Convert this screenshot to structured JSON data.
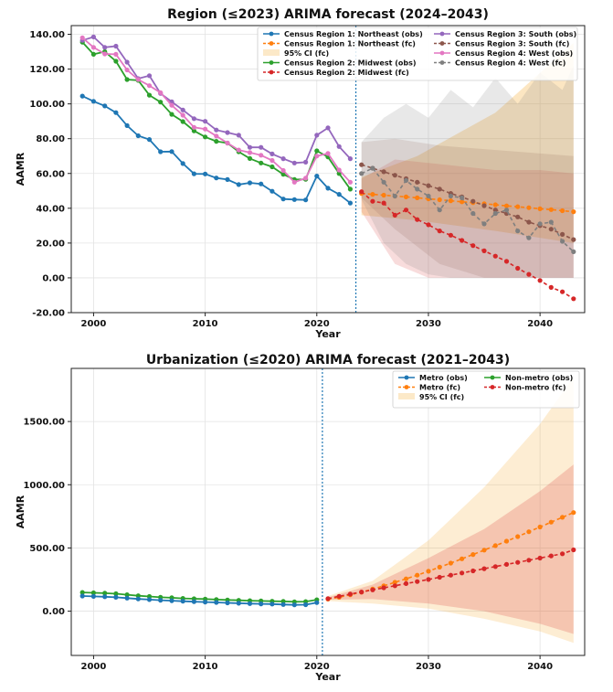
{
  "chart_data": [
    {
      "type": "line",
      "title": "Region (≤2023) ARIMA forecast (2024–2043)",
      "xlabel": "Year",
      "ylabel": "AAMR",
      "xlim": [
        1998,
        2044
      ],
      "ylim": [
        -20,
        145
      ],
      "xticks": [
        2000,
        2010,
        2020,
        2030,
        2040
      ],
      "yticks": [
        -20,
        0,
        20,
        40,
        60,
        80,
        100,
        120,
        140
      ],
      "grid": true,
      "legend_position": "top-right",
      "cutoff_year": 2023.5,
      "legend": {
        "col1": [
          "Census Region 1: Northeast (obs)",
          "Census Region 1: Northeast (fc)",
          "95% CI (fc)",
          "Census Region 2: Midwest (obs)",
          "Census Region 2: Midwest (fc)"
        ],
        "col2": [
          "Census Region 3: South (obs)",
          "Census Region 3: South (fc)",
          "Census Region 4: West (obs)",
          "Census Region 4: West (fc)"
        ]
      },
      "ci": [
        {
          "color": "#f5a623",
          "opacity": 0.28,
          "years": [
            2024,
            2029,
            2036,
            2043
          ],
          "lower": [
            36,
            33,
            27,
            20
          ],
          "upper": [
            58,
            70,
            95,
            135
          ]
        },
        {
          "color": "#d62728",
          "opacity": 0.16,
          "years": [
            2024,
            2027,
            2030,
            2033,
            2036,
            2040,
            2043
          ],
          "lower": [
            38,
            8,
            0,
            0,
            0,
            0,
            0
          ],
          "upper": [
            57,
            68,
            66,
            64,
            62,
            62,
            60
          ]
        },
        {
          "color": "#8c564b",
          "opacity": 0.16,
          "years": [
            2024,
            2027,
            2031,
            2035,
            2039,
            2043
          ],
          "lower": [
            46,
            28,
            8,
            0,
            0,
            0
          ],
          "upper": [
            78,
            80,
            76,
            74,
            72,
            70
          ]
        },
        {
          "color": "#7f7f7f",
          "opacity": 0.18,
          "years": [
            2024,
            2026,
            2028,
            2030,
            2032,
            2034,
            2036,
            2038,
            2040,
            2042,
            2043
          ],
          "lower": [
            45,
            20,
            8,
            2,
            0,
            0,
            0,
            0,
            0,
            0,
            0
          ],
          "upper": [
            78,
            92,
            100,
            92,
            108,
            98,
            115,
            100,
            118,
            108,
            122
          ]
        }
      ],
      "series": [
        {
          "name": "Census Region 1: Northeast (obs)",
          "color": "#1f77b4",
          "x": [
            1999,
            2000,
            2001,
            2002,
            2003,
            2004,
            2005,
            2006,
            2007,
            2008,
            2009,
            2010,
            2011,
            2012,
            2013,
            2014,
            2015,
            2016,
            2017,
            2018,
            2019,
            2020,
            2021,
            2022,
            2023
          ],
          "y": [
            104.5,
            101.5,
            98.8,
            95,
            87.5,
            81.7,
            79.5,
            72.5,
            72.6,
            65.7,
            59.8,
            59.7,
            57.4,
            56.5,
            53.6,
            54.6,
            54,
            49.8,
            45.3,
            45,
            44.8,
            58.5,
            51.5,
            48,
            43
          ]
        },
        {
          "name": "Census Region 2: Midwest (obs)",
          "color": "#2ca02c",
          "x": [
            1999,
            2000,
            2001,
            2002,
            2003,
            2004,
            2005,
            2006,
            2007,
            2008,
            2009,
            2010,
            2011,
            2012,
            2013,
            2014,
            2015,
            2016,
            2017,
            2018,
            2019,
            2020,
            2021,
            2022,
            2023
          ],
          "y": [
            135.5,
            128.5,
            130,
            124.5,
            114,
            113.5,
            105,
            101,
            94,
            89.8,
            84.5,
            81,
            78.5,
            77.5,
            72.5,
            68.6,
            66,
            63.8,
            59.5,
            56.5,
            56.6,
            73,
            69.5,
            60,
            51
          ]
        },
        {
          "name": "Census Region 3: South (obs)",
          "color": "#9467bd",
          "x": [
            1999,
            2000,
            2001,
            2002,
            2003,
            2004,
            2005,
            2006,
            2007,
            2008,
            2009,
            2010,
            2011,
            2012,
            2013,
            2014,
            2015,
            2016,
            2017,
            2018,
            2019,
            2020,
            2021,
            2022,
            2023
          ],
          "y": [
            136.5,
            138.5,
            132.5,
            133.2,
            124,
            114.5,
            116.2,
            106,
            101.2,
            96.5,
            91.5,
            90,
            85,
            83.5,
            82,
            75,
            75,
            71.2,
            68.5,
            66,
            66.5,
            82,
            86.2,
            75.5,
            68.5
          ]
        },
        {
          "name": "Census Region 4: West (obs)",
          "color": "#e377c2",
          "x": [
            1999,
            2000,
            2001,
            2002,
            2003,
            2004,
            2005,
            2006,
            2007,
            2008,
            2009,
            2010,
            2011,
            2012,
            2013,
            2014,
            2015,
            2016,
            2017,
            2018,
            2019,
            2020,
            2021,
            2022,
            2023
          ],
          "y": [
            138,
            132.5,
            128.7,
            128.5,
            119.5,
            114,
            110.5,
            106.5,
            99.2,
            93.5,
            86.5,
            85.5,
            81.5,
            77.5,
            73.5,
            72,
            70.5,
            67.5,
            61.7,
            55,
            57.3,
            70,
            71.5,
            62,
            55
          ]
        },
        {
          "name": "Census Region 1: Northeast (fc)",
          "color": "#ff7f0e",
          "x": [
            2024,
            2025,
            2026,
            2027,
            2028,
            2029,
            2030,
            2031,
            2032,
            2033,
            2034,
            2035,
            2036,
            2037,
            2038,
            2039,
            2040,
            2041,
            2042,
            2043
          ],
          "y": [
            48.5,
            48,
            47.5,
            47,
            46.5,
            46,
            45.4,
            44.9,
            44.3,
            43.7,
            43.2,
            42.6,
            42,
            41.4,
            40.9,
            40.3,
            39.7,
            39.2,
            38.6,
            38
          ]
        },
        {
          "name": "Census Region 2: Midwest (fc)",
          "color": "#d62728",
          "x": [
            2024,
            2025,
            2026,
            2027,
            2028,
            2029,
            2030,
            2031,
            2032,
            2033,
            2034,
            2035,
            2036,
            2037,
            2038,
            2039,
            2040,
            2041,
            2042,
            2043
          ],
          "y": [
            49.5,
            44,
            43,
            36,
            39,
            33.5,
            30.5,
            27,
            24.5,
            21.5,
            18.5,
            15.5,
            12.5,
            9.5,
            5.5,
            2,
            -1.5,
            -5.5,
            -8,
            -12
          ]
        },
        {
          "name": "Census Region 3: South (fc)",
          "color": "#8c564b",
          "x": [
            2024,
            2025,
            2026,
            2027,
            2028,
            2029,
            2030,
            2031,
            2032,
            2033,
            2034,
            2035,
            2036,
            2037,
            2038,
            2039,
            2040,
            2041,
            2042,
            2043
          ],
          "y": [
            65,
            63,
            61,
            59,
            57,
            55,
            53,
            51,
            48.5,
            46.5,
            44,
            41.5,
            39,
            37,
            35,
            32,
            30,
            28,
            25,
            22
          ]
        },
        {
          "name": "Census Region 4: West (fc)",
          "color": "#7f7f7f",
          "x": [
            2024,
            2025,
            2026,
            2027,
            2028,
            2029,
            2030,
            2031,
            2032,
            2033,
            2034,
            2035,
            2036,
            2037,
            2038,
            2039,
            2040,
            2041,
            2042,
            2043
          ],
          "y": [
            60,
            63,
            55,
            47,
            56,
            51,
            47,
            39,
            47,
            46,
            37,
            31,
            37,
            39,
            27,
            23,
            31,
            32,
            21,
            15
          ]
        }
      ]
    },
    {
      "type": "line",
      "title": "Urbanization (≤2020) ARIMA forecast (2021–2043)",
      "xlabel": "Year",
      "ylabel": "AAMR",
      "xlim": [
        1998,
        2044
      ],
      "ylim": [
        -350,
        1920
      ],
      "xticks": [
        2000,
        2010,
        2020,
        2030,
        2040
      ],
      "yticks": [
        0,
        500,
        1000,
        1500
      ],
      "grid": true,
      "legend_position": "top-right",
      "cutoff_year": 2020.5,
      "legend": {
        "col1": [
          "Metro (obs)",
          "Metro (fc)",
          "95% CI (fc)"
        ],
        "col2": [
          "Non-metro (obs)",
          "Non-metro (fc)"
        ]
      },
      "ci": [
        {
          "color": "#f5a623",
          "opacity": 0.2,
          "years": [
            2021,
            2025,
            2030,
            2035,
            2040,
            2043
          ],
          "lower": [
            80,
            60,
            20,
            -60,
            -160,
            -250
          ],
          "upper": [
            120,
            240,
            560,
            980,
            1480,
            1850
          ]
        },
        {
          "color": "#d62728",
          "opacity": 0.2,
          "years": [
            2021,
            2025,
            2030,
            2035,
            2040,
            2043
          ],
          "lower": [
            90,
            95,
            60,
            0,
            -100,
            -180
          ],
          "upper": [
            110,
            210,
            420,
            650,
            950,
            1160
          ]
        }
      ],
      "series": [
        {
          "name": "Non-metro (obs)",
          "color": "#2ca02c",
          "x": [
            1999,
            2000,
            2001,
            2002,
            2003,
            2004,
            2005,
            2006,
            2007,
            2008,
            2009,
            2010,
            2011,
            2012,
            2013,
            2014,
            2015,
            2016,
            2017,
            2018,
            2019,
            2020
          ],
          "y": [
            148,
            145,
            142,
            138,
            130,
            122,
            116,
            110,
            106,
            101,
            98,
            96,
            92,
            89,
            86,
            83,
            81,
            79,
            77,
            74,
            76,
            90
          ]
        },
        {
          "name": "Metro (obs)",
          "color": "#1f77b4",
          "x": [
            1999,
            2000,
            2001,
            2002,
            2003,
            2004,
            2005,
            2006,
            2007,
            2008,
            2009,
            2010,
            2011,
            2012,
            2013,
            2014,
            2015,
            2016,
            2017,
            2018,
            2019,
            2020
          ],
          "y": [
            120,
            117,
            114,
            110,
            103,
            97,
            92,
            87,
            83,
            79,
            75,
            72,
            69,
            66,
            63,
            60,
            58,
            56,
            53,
            50,
            51,
            68
          ]
        },
        {
          "name": "Metro (fc)",
          "color": "#ff7f0e",
          "x": [
            2021,
            2022,
            2023,
            2024,
            2025,
            2026,
            2027,
            2028,
            2029,
            2030,
            2031,
            2032,
            2033,
            2034,
            2035,
            2036,
            2037,
            2038,
            2039,
            2040,
            2041,
            2042,
            2043
          ],
          "y": [
            95,
            110,
            130,
            150,
            175,
            200,
            228,
            256,
            285,
            316,
            348,
            380,
            414,
            448,
            483,
            518,
            554,
            590,
            628,
            666,
            704,
            742,
            780
          ]
        },
        {
          "name": "Non-metro (fc)",
          "color": "#d62728",
          "x": [
            2021,
            2022,
            2023,
            2024,
            2025,
            2026,
            2027,
            2028,
            2029,
            2030,
            2031,
            2032,
            2033,
            2034,
            2035,
            2036,
            2037,
            2038,
            2039,
            2040,
            2041,
            2042,
            2043
          ],
          "y": [
            100,
            118,
            135,
            152,
            168,
            185,
            201,
            218,
            234,
            251,
            268,
            285,
            302,
            319,
            336,
            353,
            370,
            386,
            403,
            420,
            437,
            454,
            485
          ]
        }
      ]
    }
  ]
}
